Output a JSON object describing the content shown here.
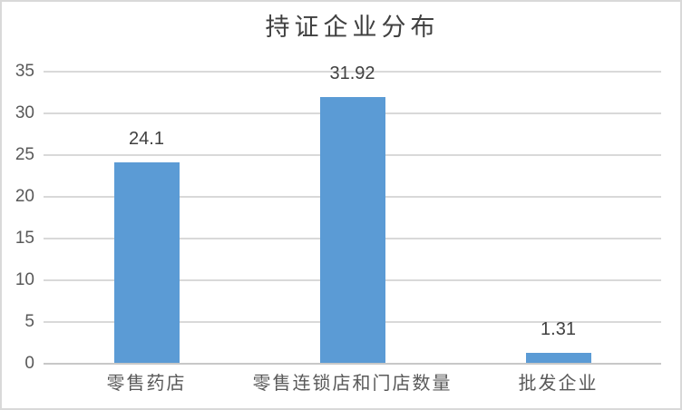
{
  "chart_data": {
    "type": "bar",
    "title": "持证企业分布",
    "categories": [
      "零售药店",
      "零售连锁店和门店数量",
      "批发企业"
    ],
    "values": [
      24.1,
      31.92,
      1.31
    ],
    "value_labels": [
      "24.1",
      "31.92",
      "1.31"
    ],
    "yticks": [
      0,
      5,
      10,
      15,
      20,
      25,
      30,
      35
    ],
    "ylim": [
      0,
      35
    ],
    "xlabel": "",
    "ylabel": "",
    "grid": true,
    "legend": "none",
    "colors": {
      "bar": "#5B9BD5",
      "gridline": "#D9D9D9",
      "axis_line": "#C8C8C8",
      "title_text": "#404040",
      "value_label_text": "#404040",
      "tick_text": "#595959",
      "frame_border": "#D9D9D9",
      "background": "#FFFFFF"
    }
  }
}
